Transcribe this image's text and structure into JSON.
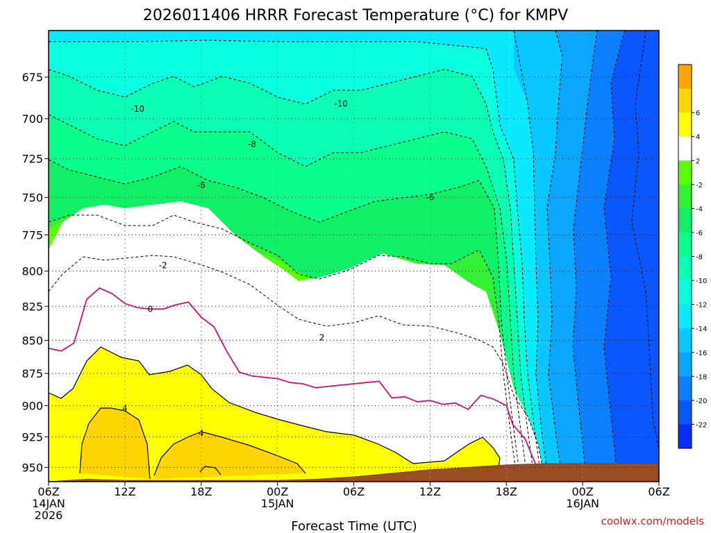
{
  "chart_data": {
    "type": "heatmap",
    "title": "2026011406 HRRR Forecast Temperature (°C) for KMPV",
    "xlabel": "Forecast Time (UTC)",
    "ylabel": "",
    "y_scale": "log",
    "ylim": [
      962,
      648
    ],
    "y_ticks": [
      675,
      700,
      725,
      750,
      775,
      800,
      825,
      850,
      875,
      900,
      925,
      950
    ],
    "xlim": [
      0,
      48
    ],
    "x_ticks": [
      {
        "hour": 0,
        "lines": [
          "06Z",
          "14JAN",
          "2026"
        ]
      },
      {
        "hour": 6,
        "lines": [
          "12Z"
        ]
      },
      {
        "hour": 12,
        "lines": [
          "18Z"
        ]
      },
      {
        "hour": 18,
        "lines": [
          "00Z",
          "15JAN"
        ]
      },
      {
        "hour": 24,
        "lines": [
          "06Z"
        ]
      },
      {
        "hour": 30,
        "lines": [
          "12Z"
        ]
      },
      {
        "hour": 36,
        "lines": [
          "18Z"
        ]
      },
      {
        "hour": 42,
        "lines": [
          "00Z",
          "16JAN"
        ]
      },
      {
        "hour": 48,
        "lines": [
          "06Z"
        ]
      }
    ],
    "grid": true,
    "colorbar": {
      "levels": [
        -24,
        -22,
        -20,
        -18,
        -16,
        -14,
        -12,
        -10,
        -8,
        -6,
        -4,
        -2,
        2,
        4,
        6,
        8
      ],
      "colors": [
        "#0a2cff",
        "#0a56ff",
        "#0a80ff",
        "#0aa6ff",
        "#0ac8ff",
        "#0aeaff",
        "#0affe0",
        "#0affb4",
        "#0aff8c",
        "#10f066",
        "#34f034",
        "#5aff00",
        "#ffffff",
        "#ffff00",
        "#ffd500",
        "#ffa500"
      ],
      "labels": [
        "6",
        "4",
        "2",
        "-2",
        "-4",
        "-6",
        "-8",
        "-10",
        "-12",
        "-14",
        "-16",
        "-18",
        "-20",
        "-22"
      ]
    },
    "contour_labels": [
      {
        "text": "-10",
        "hour": 7,
        "p": 694
      },
      {
        "text": "-10",
        "hour": 23,
        "p": 691
      },
      {
        "text": "-8",
        "hour": 16,
        "p": 716
      },
      {
        "text": "-6",
        "hour": 12,
        "p": 742
      },
      {
        "text": "-6",
        "hour": 30,
        "p": 750
      },
      {
        "text": "-2",
        "hour": 9,
        "p": 796
      },
      {
        "text": "0",
        "hour": 8,
        "p": 827
      },
      {
        "text": "2",
        "hour": 21.5,
        "p": 848
      },
      {
        "text": "4",
        "hour": 6,
        "p": 902
      },
      {
        "text": "4",
        "hour": 12,
        "p": 922
      }
    ],
    "freezing_line": [
      [
        0,
        856
      ],
      [
        1,
        858
      ],
      [
        2,
        852
      ],
      [
        3,
        820
      ],
      [
        4,
        812
      ],
      [
        5,
        816
      ],
      [
        6,
        823
      ],
      [
        7,
        826
      ],
      [
        8,
        827
      ],
      [
        9,
        827
      ],
      [
        10,
        824
      ],
      [
        11,
        822
      ],
      [
        12,
        833
      ],
      [
        13,
        840
      ],
      [
        14,
        858
      ],
      [
        15,
        874
      ],
      [
        16,
        877
      ],
      [
        17,
        878
      ],
      [
        18,
        879
      ],
      [
        19,
        882
      ],
      [
        20,
        883
      ],
      [
        21,
        886
      ],
      [
        22,
        885
      ],
      [
        23,
        884
      ],
      [
        24,
        883
      ],
      [
        25,
        882
      ],
      [
        26,
        881
      ],
      [
        27,
        894
      ],
      [
        28,
        893
      ],
      [
        29,
        897
      ],
      [
        30,
        896
      ],
      [
        31,
        899
      ],
      [
        32,
        898
      ],
      [
        33,
        903
      ],
      [
        34,
        892
      ],
      [
        35,
        895
      ],
      [
        36,
        900
      ],
      [
        36.5,
        915
      ],
      [
        37.5,
        927
      ],
      [
        38,
        940
      ],
      [
        38.5,
        952
      ]
    ],
    "terrain_pressure": [
      [
        0,
        962
      ],
      [
        3,
        960
      ],
      [
        6,
        961
      ],
      [
        9,
        961
      ],
      [
        12,
        961
      ],
      [
        15,
        961
      ],
      [
        18,
        961
      ],
      [
        21,
        960
      ],
      [
        24,
        958
      ],
      [
        27,
        955
      ],
      [
        30,
        952
      ],
      [
        33,
        950
      ],
      [
        36,
        948
      ],
      [
        39,
        947
      ],
      [
        42,
        947
      ],
      [
        45,
        947
      ],
      [
        48,
        947
      ]
    ],
    "credit": "coolwx.com/models"
  }
}
